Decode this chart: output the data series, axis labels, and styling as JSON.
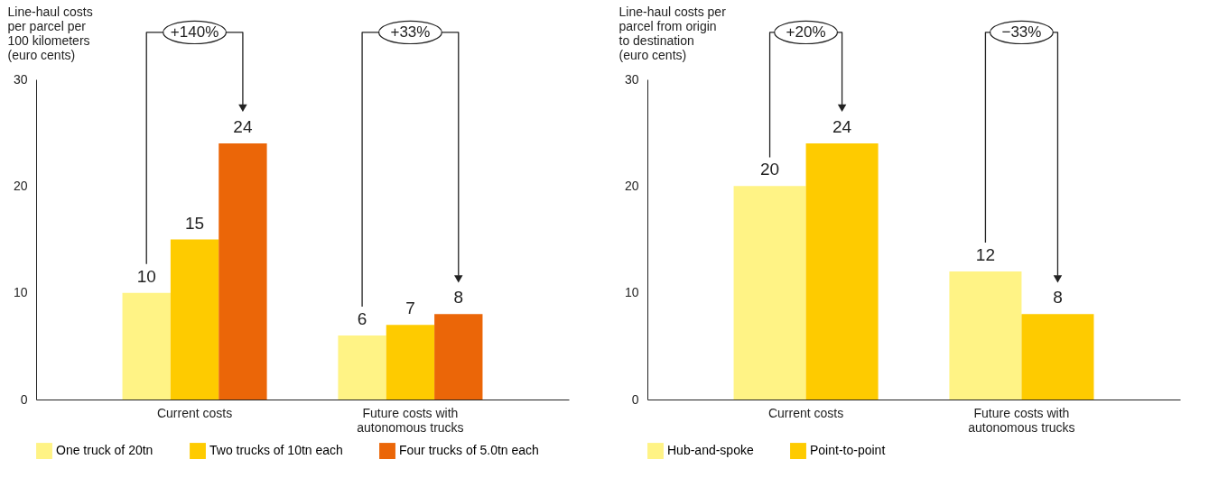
{
  "chart_data": [
    {
      "type": "bar",
      "ylabel": "Line-haul costs\nper parcel per\n100 kilometers\n(euro cents)",
      "categories": [
        "Current costs",
        "Future costs with\nautonomous trucks"
      ],
      "series": [
        {
          "name": "One truck of 20tn",
          "color": "#fff385",
          "values": [
            10,
            6
          ]
        },
        {
          "name": "Two trucks of 10tn each",
          "color": "#fecb00",
          "values": [
            15,
            7
          ]
        },
        {
          "name": "Four trucks of 5.0tn each",
          "color": "#eb6608",
          "values": [
            24,
            8
          ]
        }
      ],
      "ylim": [
        0,
        30
      ],
      "yticks": [
        0,
        10,
        20,
        30
      ],
      "grid": false,
      "legend": "bottom left",
      "data_labels": true,
      "annotations": [
        "+140%",
        "+33%"
      ]
    },
    {
      "type": "bar",
      "ylabel": "Line-haul costs per\nparcel from origin\nto destination\n(euro cents)",
      "categories": [
        "Current costs",
        "Future costs with\nautonomous trucks"
      ],
      "series": [
        {
          "name": "Hub-and-spoke",
          "color": "#fff385",
          "values": [
            20,
            12
          ]
        },
        {
          "name": "Point-to-point",
          "color": "#fecb00",
          "values": [
            24,
            8
          ]
        }
      ],
      "ylim": [
        0,
        30
      ],
      "yticks": [
        0,
        10,
        20,
        30
      ],
      "grid": false,
      "legend": "bottom left",
      "data_labels": true,
      "annotations": [
        "+20%",
        "−33%"
      ]
    }
  ]
}
